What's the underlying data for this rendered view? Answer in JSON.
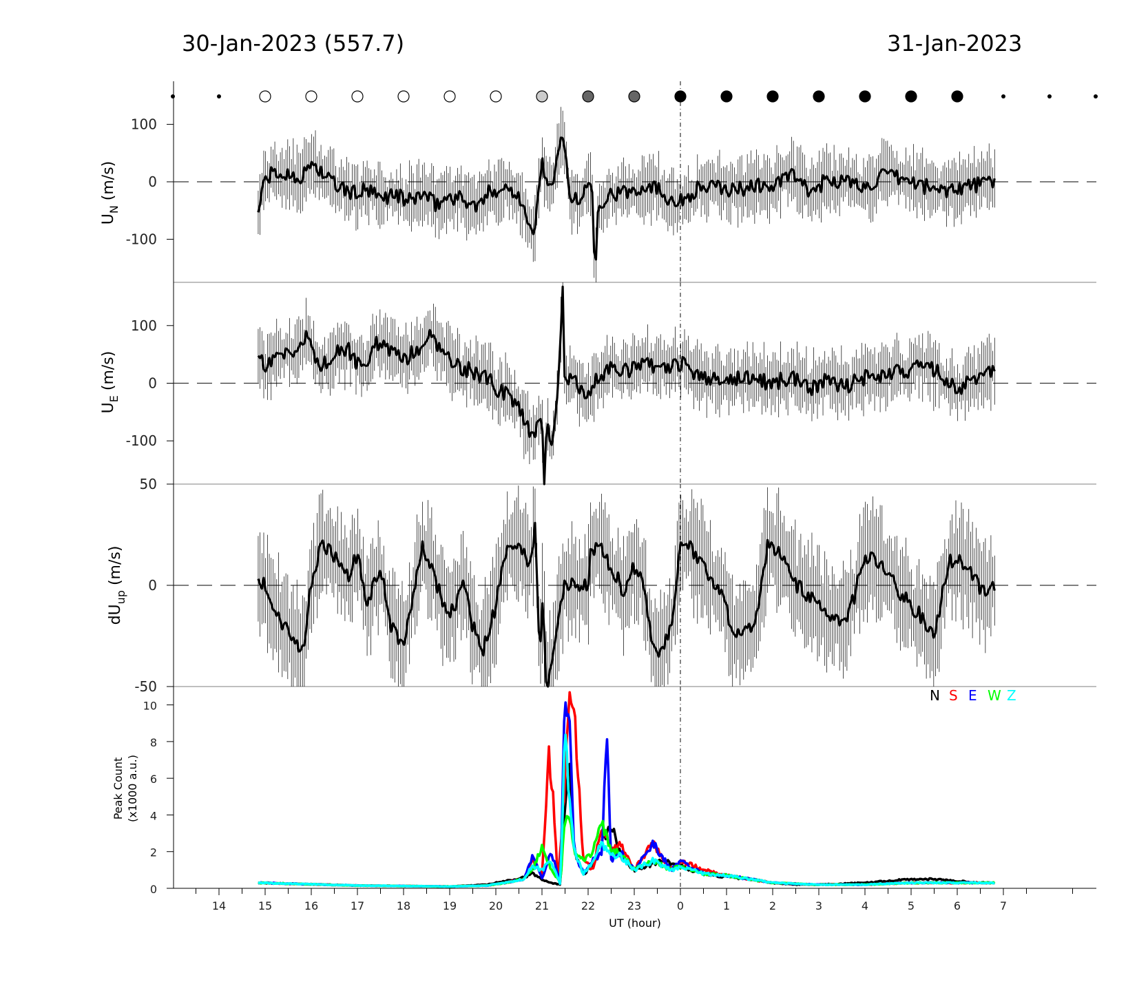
{
  "header": {
    "left_title": "30-Jan-2023 (557.7)",
    "right_title": "31-Jan-2023"
  },
  "chart_data": [
    {
      "type": "line",
      "panel": "UN",
      "ylabel": "U",
      "ylabel_sub": "N",
      "ylabel_unit": "(m/s)",
      "yticks": [
        100,
        0,
        -100
      ],
      "ylim": [
        -175,
        175
      ],
      "zero_line": "dashed",
      "midnight_line": "dash-dot",
      "moon_phase_markers": [
        {
          "x": 13,
          "kind": "dot"
        },
        {
          "x": 14,
          "kind": "dot"
        },
        {
          "x": 15,
          "kind": "open"
        },
        {
          "x": 16,
          "kind": "open"
        },
        {
          "x": 17,
          "kind": "open"
        },
        {
          "x": 18,
          "kind": "open"
        },
        {
          "x": 19,
          "kind": "open"
        },
        {
          "x": 20,
          "kind": "open"
        },
        {
          "x": 21,
          "kind": "light"
        },
        {
          "x": 22,
          "kind": "mid"
        },
        {
          "x": 23,
          "kind": "mid"
        },
        {
          "x": 24,
          "kind": "filled"
        },
        {
          "x": 25,
          "kind": "filled"
        },
        {
          "x": 26,
          "kind": "filled"
        },
        {
          "x": 27,
          "kind": "filled"
        },
        {
          "x": 28,
          "kind": "filled"
        },
        {
          "x": 29,
          "kind": "filled"
        },
        {
          "x": 30,
          "kind": "filled"
        },
        {
          "x": 31,
          "kind": "dot"
        },
        {
          "x": 32,
          "kind": "dot"
        },
        {
          "x": 33,
          "kind": "dot"
        }
      ],
      "error_bars": "vertical, about ±40",
      "series": [
        {
          "x": [
            14.85,
            15.0,
            15.2,
            15.4,
            15.6,
            15.8,
            16.0,
            16.3,
            16.6,
            16.9,
            17.2,
            17.5,
            17.8,
            18.1,
            18.4,
            18.7,
            19.0,
            19.3,
            19.6,
            19.9,
            20.2,
            20.5,
            20.8,
            20.9,
            21.0,
            21.2,
            21.3,
            21.45,
            21.6,
            21.8,
            22.0,
            22.1,
            22.15,
            22.2,
            22.35,
            22.5,
            22.8,
            23.1,
            23.4,
            23.7,
            24.0,
            24.4,
            24.8,
            25.2,
            25.6,
            26.0,
            26.4,
            26.8,
            27.2,
            27.6,
            28.0,
            28.4,
            28.8,
            29.2,
            29.6,
            30.0,
            30.4,
            30.8
          ],
          "y": [
            -50,
            5,
            15,
            10,
            15,
            5,
            35,
            10,
            -10,
            -20,
            -15,
            -30,
            -20,
            -35,
            -20,
            -40,
            -25,
            -30,
            -45,
            -15,
            -10,
            -20,
            -100,
            -40,
            35,
            -20,
            20,
            90,
            -20,
            -40,
            5,
            -25,
            -180,
            -40,
            -30,
            -20,
            -20,
            -10,
            -5,
            -25,
            -35,
            -10,
            -10,
            -15,
            -5,
            -10,
            15,
            -20,
            5,
            0,
            -10,
            10,
            5,
            -5,
            -15,
            -10,
            -5,
            0
          ]
        }
      ]
    },
    {
      "type": "line",
      "panel": "UE",
      "ylabel": "U",
      "ylabel_sub": "E",
      "ylabel_unit": "(m/s)",
      "yticks": [
        100,
        0,
        -100
      ],
      "ylim": [
        -175,
        175
      ],
      "zero_line": "dashed",
      "error_bars": "vertical, about ±40",
      "series": [
        {
          "x": [
            14.85,
            15.0,
            15.3,
            15.6,
            15.9,
            16.2,
            16.5,
            16.8,
            17.1,
            17.4,
            17.7,
            18.0,
            18.3,
            18.6,
            18.9,
            19.2,
            19.5,
            19.8,
            20.1,
            20.4,
            20.6,
            20.8,
            20.9,
            21.0,
            21.05,
            21.1,
            21.2,
            21.35,
            21.45,
            21.5,
            21.55,
            21.7,
            22.0,
            22.2,
            22.5,
            22.8,
            23.1,
            23.4,
            23.7,
            24.0,
            24.4,
            24.8,
            25.2,
            25.6,
            26.0,
            26.4,
            26.8,
            27.2,
            27.6,
            28.0,
            28.4,
            28.8,
            29.2,
            29.6,
            30.0,
            30.4,
            30.8
          ],
          "y": [
            45,
            30,
            55,
            40,
            80,
            30,
            50,
            60,
            20,
            70,
            55,
            40,
            60,
            85,
            50,
            30,
            20,
            10,
            -15,
            -30,
            -60,
            -90,
            -70,
            -50,
            -180,
            -60,
            -120,
            -20,
            175,
            -30,
            10,
            5,
            -20,
            10,
            25,
            20,
            30,
            30,
            20,
            35,
            15,
            5,
            10,
            5,
            0,
            10,
            -10,
            5,
            -5,
            10,
            15,
            20,
            30,
            20,
            -10,
            10,
            20
          ]
        }
      ]
    },
    {
      "type": "line",
      "panel": "dUup",
      "ylabel": "dU",
      "ylabel_sub": "up",
      "ylabel_unit": "(m/s)",
      "yticks": [
        50,
        0,
        -50
      ],
      "ylim": [
        -50,
        50
      ],
      "zero_line": "dashed",
      "error_bars": "vertical, about ±20",
      "series": [
        {
          "x": [
            14.85,
            15.0,
            15.2,
            15.5,
            15.7,
            15.8,
            16.0,
            16.2,
            16.5,
            16.8,
            17.0,
            17.2,
            17.5,
            17.7,
            18.0,
            18.2,
            18.4,
            18.6,
            18.8,
            19.0,
            19.3,
            19.5,
            19.7,
            20.0,
            20.2,
            20.4,
            20.6,
            20.75,
            20.85,
            20.95,
            21.0,
            21.1,
            21.5,
            22.0,
            22.05,
            22.2,
            22.5,
            22.8,
            23.0,
            23.2,
            23.4,
            23.6,
            23.8,
            24.0,
            24.2,
            24.5,
            24.8,
            25.2,
            25.6,
            25.9,
            26.2,
            26.5,
            26.8,
            27.0,
            27.3,
            27.6,
            28.0,
            28.4,
            28.8,
            29.2,
            29.5,
            29.8,
            30.0,
            30.3,
            30.6,
            30.8
          ],
          "y": [
            0,
            2,
            -15,
            -20,
            -30,
            -35,
            0,
            20,
            15,
            5,
            15,
            -10,
            10,
            -20,
            -30,
            -5,
            20,
            10,
            -5,
            -15,
            0,
            -20,
            -35,
            -10,
            15,
            20,
            15,
            10,
            30,
            -40,
            0,
            -50,
            0,
            0,
            15,
            20,
            10,
            -5,
            10,
            0,
            -30,
            -35,
            -20,
            20,
            20,
            10,
            0,
            -25,
            -20,
            20,
            15,
            0,
            -5,
            -10,
            -15,
            -20,
            15,
            10,
            -5,
            -15,
            -25,
            10,
            15,
            5,
            -5,
            0
          ]
        }
      ]
    },
    {
      "type": "line",
      "panel": "peak_count",
      "ylabel": "Peak Count",
      "ylabel2": "(x1000 a.u.)",
      "xlabel": "UT (hour)",
      "xticks": [
        "14",
        "15",
        "16",
        "17",
        "18",
        "19",
        "20",
        "21",
        "22",
        "23",
        "0",
        "1",
        "2",
        "3",
        "4",
        "5",
        "6",
        "7"
      ],
      "xlim": [
        12.8,
        33.0
      ],
      "yticks": [
        0,
        2,
        4,
        6,
        8,
        10
      ],
      "ylim": [
        0,
        11
      ],
      "legend": "top-right",
      "series": [
        {
          "name": "N",
          "color": "#000000",
          "x": [
            14.85,
            17,
            19,
            19.8,
            20.2,
            20.6,
            20.8,
            21.0,
            21.2,
            21.4,
            21.5,
            21.6,
            21.7,
            21.9,
            22.1,
            22.3,
            22.5,
            22.7,
            23.0,
            23.3,
            23.6,
            24.0,
            24.5,
            25.0,
            25.5,
            26.0,
            26.5,
            27.0,
            28.0,
            29.0,
            29.5,
            30.0,
            30.5,
            30.8
          ],
          "y": [
            0.3,
            0.15,
            0.1,
            0.2,
            0.4,
            0.6,
            0.8,
            0.5,
            0.3,
            0.2,
            5.0,
            7.0,
            2.0,
            0.8,
            1.2,
            2.5,
            3.5,
            1.8,
            1.0,
            1.2,
            1.5,
            1.2,
            0.8,
            0.6,
            0.5,
            0.3,
            0.2,
            0.2,
            0.3,
            0.5,
            0.5,
            0.4,
            0.3,
            0.3
          ]
        },
        {
          "name": "S",
          "color": "#ff0000",
          "x": [
            14.85,
            17,
            19,
            19.8,
            20.2,
            20.6,
            20.8,
            21.0,
            21.15,
            21.25,
            21.35,
            21.5,
            21.6,
            21.7,
            21.9,
            22.1,
            22.3,
            22.5,
            22.7,
            23.0,
            23.4,
            23.8,
            24.0,
            24.5,
            25.0,
            25.5,
            26.0,
            27.0,
            28.0,
            29.0,
            30.0,
            30.8
          ],
          "y": [
            0.3,
            0.15,
            0.1,
            0.15,
            0.3,
            0.5,
            1.5,
            0.8,
            7.5,
            4.5,
            0.2,
            6.0,
            10.5,
            9.5,
            1.5,
            1.0,
            3.5,
            2.0,
            2.5,
            1.0,
            2.5,
            1.0,
            1.5,
            1.0,
            0.7,
            0.5,
            0.3,
            0.2,
            0.2,
            0.3,
            0.3,
            0.3
          ]
        },
        {
          "name": "E",
          "color": "#0000ff",
          "x": [
            14.85,
            17,
            19,
            19.8,
            20.2,
            20.6,
            20.8,
            21.0,
            21.2,
            21.4,
            21.5,
            21.6,
            21.7,
            21.9,
            22.1,
            22.3,
            22.4,
            22.5,
            22.7,
            23.0,
            23.4,
            23.8,
            24.0,
            24.5,
            25.0,
            25.5,
            26.0,
            27.0,
            28.0,
            29.0,
            30.0,
            30.8
          ],
          "y": [
            0.3,
            0.15,
            0.1,
            0.15,
            0.3,
            0.5,
            1.8,
            0.5,
            2.0,
            0.3,
            11.0,
            9.0,
            2.0,
            0.8,
            1.5,
            2.0,
            8.5,
            1.5,
            2.0,
            1.0,
            2.5,
            1.0,
            1.5,
            0.8,
            0.7,
            0.5,
            0.3,
            0.2,
            0.2,
            0.3,
            0.3,
            0.3
          ]
        },
        {
          "name": "W",
          "color": "#00ff00",
          "x": [
            14.85,
            17,
            19,
            19.8,
            20.2,
            20.6,
            20.8,
            21.0,
            21.2,
            21.4,
            21.5,
            21.6,
            21.7,
            21.9,
            22.1,
            22.3,
            22.5,
            22.7,
            23.0,
            23.4,
            23.8,
            24.0,
            24.5,
            25.0,
            25.5,
            26.0,
            27.0,
            28.0,
            29.0,
            30.0,
            30.8
          ],
          "y": [
            0.3,
            0.15,
            0.1,
            0.15,
            0.3,
            0.5,
            1.0,
            2.3,
            1.0,
            0.3,
            4.0,
            4.0,
            2.0,
            1.5,
            2.0,
            3.5,
            2.0,
            2.0,
            1.0,
            1.5,
            1.0,
            1.2,
            0.8,
            0.7,
            0.5,
            0.3,
            0.2,
            0.2,
            0.3,
            0.3,
            0.3
          ]
        },
        {
          "name": "Z",
          "color": "#00ffff",
          "x": [
            14.85,
            17,
            19,
            19.8,
            20.2,
            20.6,
            20.8,
            21.0,
            21.2,
            21.4,
            21.5,
            21.6,
            21.7,
            21.9,
            22.1,
            22.3,
            22.5,
            22.7,
            23.0,
            23.4,
            23.8,
            24.0,
            24.5,
            25.0,
            25.5,
            26.0,
            27.0,
            28.0,
            29.0,
            30.0,
            30.8
          ],
          "y": [
            0.3,
            0.15,
            0.1,
            0.15,
            0.3,
            0.5,
            1.2,
            1.0,
            1.5,
            0.2,
            8.5,
            4.5,
            2.0,
            0.8,
            1.5,
            2.5,
            1.8,
            1.8,
            1.0,
            1.5,
            1.0,
            1.2,
            0.8,
            0.7,
            0.5,
            0.3,
            0.2,
            0.2,
            0.3,
            0.3,
            0.3
          ]
        }
      ]
    }
  ]
}
